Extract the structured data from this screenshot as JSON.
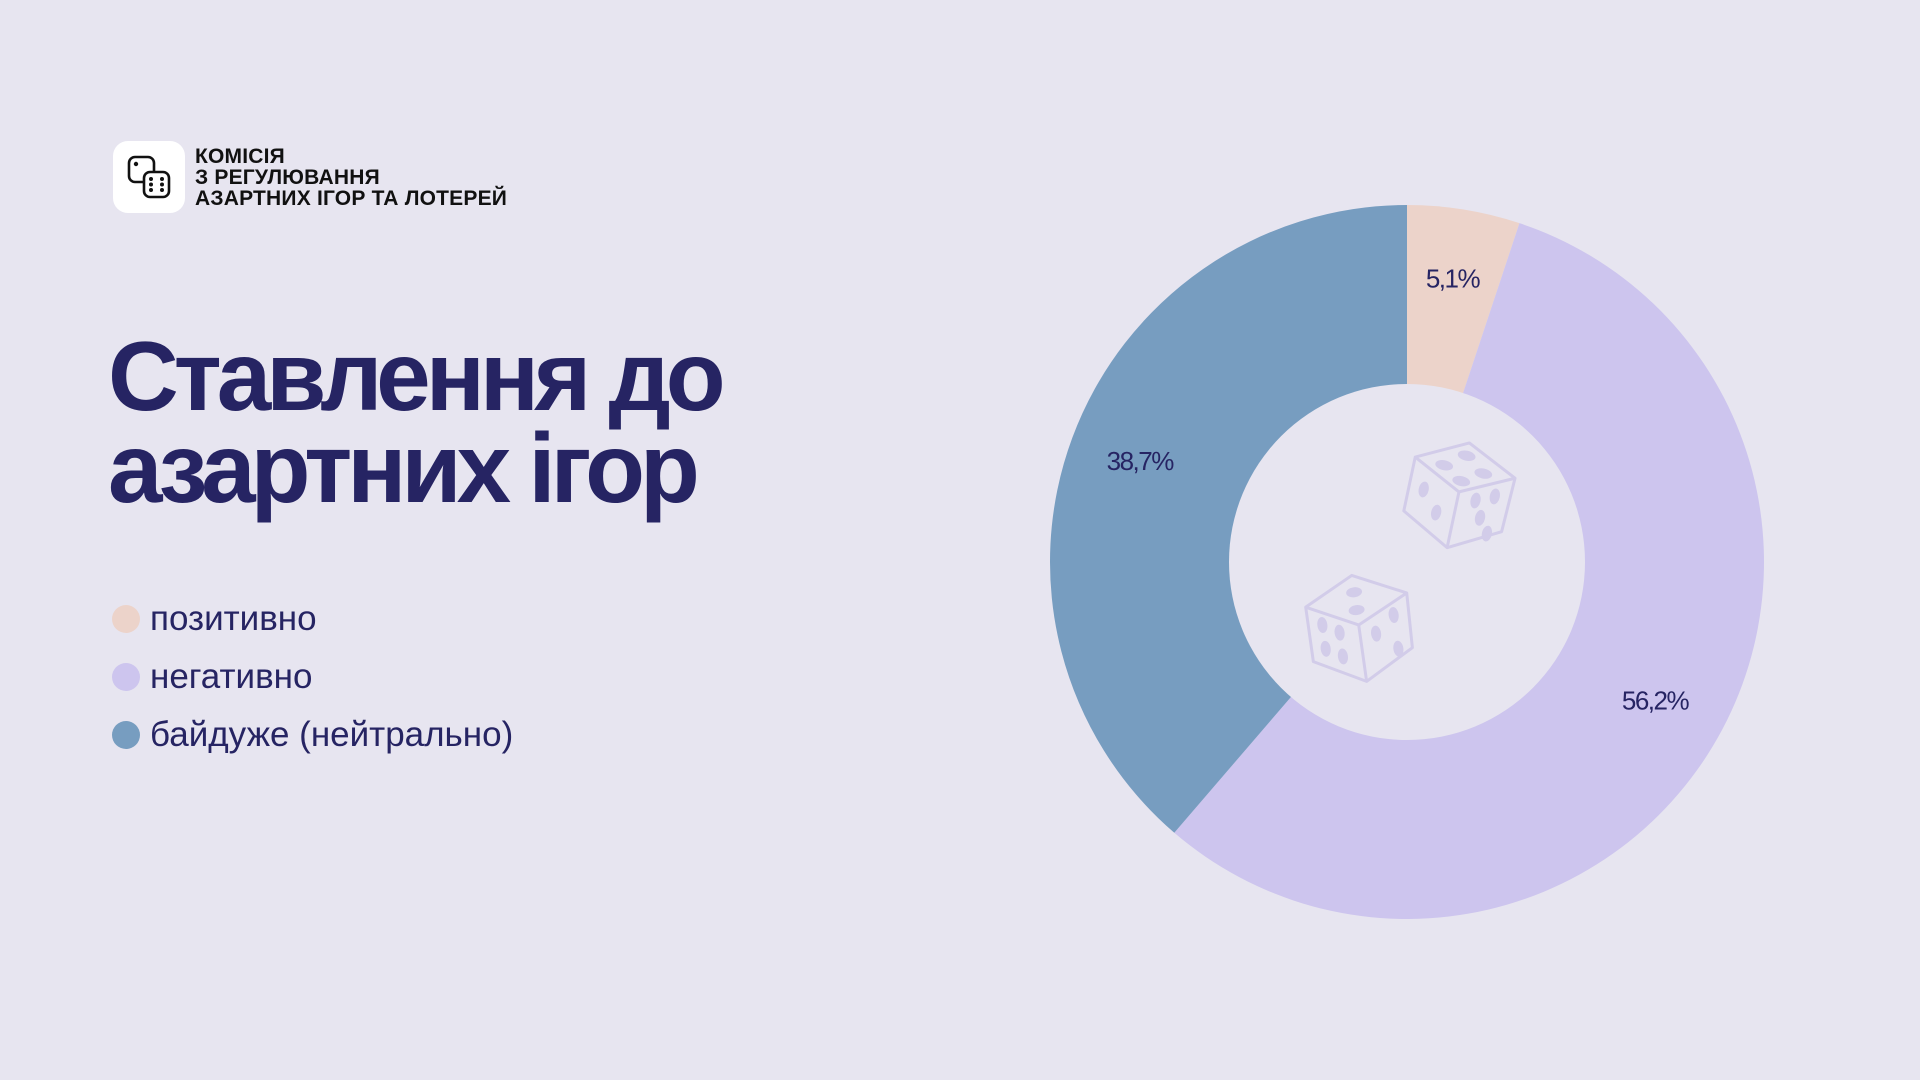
{
  "org": {
    "lines": [
      "КОМІСІЯ",
      "З РЕГУЛЮВАННЯ",
      "АЗАРТНИХ ІГОР ТА ЛОТЕРЕЙ"
    ],
    "icon": "dice-icon"
  },
  "title": {
    "line1": "Ставлення до",
    "line2": "азартних ігор"
  },
  "colors": {
    "background": "#e7e5f0",
    "text": "#262463",
    "positive": "#ecd3ca",
    "negative": "#cdc5ee",
    "neutral": "#779dc0",
    "dice": "#d2cce9"
  },
  "chart_data": {
    "type": "pie",
    "donut": true,
    "categories": [
      "позитивно",
      "негативно",
      "байдуже (нейтрально)"
    ],
    "values": [
      5.1,
      56.2,
      38.7
    ],
    "labels": [
      "5,1%",
      "56,2%",
      "38,7%"
    ],
    "colors": [
      "#ecd3ca",
      "#cdc5ee",
      "#779dc0"
    ],
    "legend": "left",
    "center_icon": "dice-icon"
  }
}
